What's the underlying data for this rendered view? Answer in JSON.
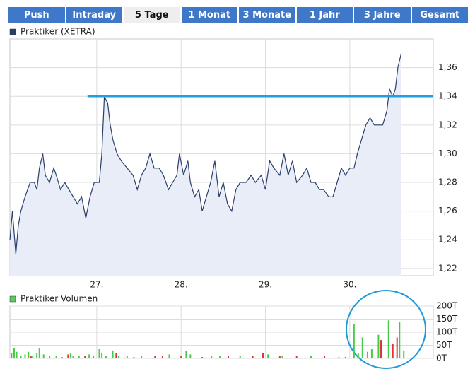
{
  "tabs": {
    "labels": [
      "Push",
      "Intraday",
      "5 Tage",
      "1 Monat",
      "3 Monate",
      "1 Jahr",
      "3 Jahre",
      "Gesamt"
    ],
    "selected_index": 2
  },
  "chart_data": [
    {
      "type": "line",
      "series": [
        {
          "name": "Praktiker (XETRA)",
          "color": "#2b3f6b",
          "fill": "#e9edf8",
          "x": [
            25.97,
            26.0,
            26.04,
            26.07,
            26.1,
            26.15,
            26.21,
            26.26,
            26.29,
            26.32,
            26.36,
            26.39,
            26.44,
            26.49,
            26.52,
            26.57,
            26.62,
            26.67,
            26.72,
            26.77,
            26.82,
            26.87,
            26.92,
            26.97,
            27.03,
            27.06,
            27.09,
            27.13,
            27.16,
            27.19,
            27.24,
            27.29,
            27.36,
            27.43,
            27.48,
            27.53,
            27.58,
            27.63,
            27.68,
            27.74,
            27.79,
            27.85,
            27.9,
            27.95,
            27.98,
            28.03,
            28.08,
            28.11,
            28.16,
            28.21,
            28.25,
            28.3,
            28.35,
            28.4,
            28.45,
            28.5,
            28.55,
            28.6,
            28.65,
            28.7,
            28.77,
            28.83,
            28.88,
            28.95,
            29.0,
            29.05,
            29.1,
            29.17,
            29.22,
            29.27,
            29.32,
            29.37,
            29.44,
            29.49,
            29.54,
            29.59,
            29.64,
            29.69,
            29.75,
            29.8,
            29.85,
            29.9,
            29.95,
            30.0,
            30.05,
            30.09,
            30.14,
            30.19,
            30.24,
            30.29,
            30.34,
            30.39,
            30.44,
            30.47,
            30.51,
            30.54,
            30.57,
            30.61
          ],
          "values": [
            1.24,
            1.26,
            1.23,
            1.25,
            1.26,
            1.27,
            1.28,
            1.28,
            1.275,
            1.29,
            1.3,
            1.285,
            1.28,
            1.29,
            1.285,
            1.275,
            1.28,
            1.275,
            1.27,
            1.265,
            1.27,
            1.255,
            1.27,
            1.28,
            1.28,
            1.3,
            1.34,
            1.335,
            1.32,
            1.31,
            1.3,
            1.295,
            1.29,
            1.285,
            1.275,
            1.285,
            1.29,
            1.3,
            1.29,
            1.29,
            1.285,
            1.275,
            1.28,
            1.285,
            1.3,
            1.285,
            1.295,
            1.28,
            1.27,
            1.275,
            1.26,
            1.27,
            1.28,
            1.295,
            1.27,
            1.28,
            1.265,
            1.26,
            1.275,
            1.28,
            1.28,
            1.285,
            1.28,
            1.285,
            1.275,
            1.295,
            1.29,
            1.285,
            1.3,
            1.285,
            1.295,
            1.28,
            1.285,
            1.29,
            1.28,
            1.28,
            1.275,
            1.275,
            1.27,
            1.27,
            1.28,
            1.29,
            1.285,
            1.29,
            1.29,
            1.3,
            1.31,
            1.32,
            1.325,
            1.32,
            1.32,
            1.32,
            1.33,
            1.345,
            1.34,
            1.345,
            1.36,
            1.37
          ]
        }
      ],
      "xlim": [
        25.97,
        30.99
      ],
      "xticks": [
        {
          "value": 27,
          "label": "27."
        },
        {
          "value": 28,
          "label": "28."
        },
        {
          "value": 29,
          "label": "29."
        },
        {
          "value": 30,
          "label": "30."
        }
      ],
      "ylim": [
        1.215,
        1.38
      ],
      "yticks": [
        {
          "value": 1.22,
          "label": "1,22"
        },
        {
          "value": 1.24,
          "label": "1,24"
        },
        {
          "value": 1.26,
          "label": "1,26"
        },
        {
          "value": 1.28,
          "label": "1,28"
        },
        {
          "value": 1.3,
          "label": "1,30"
        },
        {
          "value": 1.32,
          "label": "1,32"
        },
        {
          "value": 1.34,
          "label": "1,34"
        },
        {
          "value": 1.36,
          "label": "1,36"
        }
      ],
      "grid": true,
      "reference_line": {
        "value": 1.34,
        "x": [
          26.89,
          30.99
        ],
        "color": "#1fa0e0"
      }
    },
    {
      "type": "bar",
      "series": [
        {
          "name": "Praktiker Volumen",
          "color": "#5ccc5c",
          "x": [
            25.99,
            26.02,
            26.05,
            26.1,
            26.15,
            26.19,
            26.22,
            26.24,
            26.29,
            26.32,
            26.37,
            26.44,
            26.52,
            26.59,
            26.66,
            26.69,
            26.72,
            26.79,
            26.86,
            26.91,
            26.96,
            27.03,
            27.06,
            27.11,
            27.19,
            27.23,
            27.26,
            27.36,
            27.44,
            27.53,
            27.69,
            27.78,
            27.86,
            28.0,
            28.06,
            28.11,
            28.25,
            28.36,
            28.46,
            28.56,
            28.7,
            28.85,
            28.97,
            29.03,
            29.17,
            29.2,
            29.37,
            29.54,
            29.7,
            29.87,
            29.95,
            30.05,
            30.1,
            30.15,
            30.21,
            30.26,
            30.34,
            30.37,
            30.46,
            30.51,
            30.56,
            30.59,
            30.64
          ],
          "values": [
            20,
            40,
            25,
            10,
            15,
            25,
            10,
            10,
            20,
            40,
            15,
            10,
            10,
            5,
            15,
            20,
            10,
            8,
            10,
            15,
            10,
            35,
            20,
            10,
            30,
            20,
            10,
            8,
            5,
            10,
            8,
            10,
            15,
            8,
            30,
            15,
            5,
            10,
            10,
            10,
            10,
            8,
            20,
            15,
            8,
            10,
            8,
            8,
            10,
            5,
            5,
            130,
            20,
            80,
            25,
            35,
            90,
            70,
            145,
            55,
            80,
            140,
            30
          ],
          "colors": [
            "#4c4",
            "#4c4",
            "#4c4",
            "#4c4",
            "#4c4",
            "#4c4",
            "#d33",
            "#4c4",
            "#4c4",
            "#4c4",
            "#4c4",
            "#4c4",
            "#4c4",
            "#4c4",
            "#d33",
            "#4c4",
            "#4c4",
            "#4c4",
            "#d33",
            "#4c4",
            "#4c4",
            "#4c4",
            "#4c4",
            "#4c4",
            "#4c4",
            "#d33",
            "#4c4",
            "#4c4",
            "#d33",
            "#4c4",
            "#d33",
            "#d33",
            "#4c4",
            "#d33",
            "#4c4",
            "#4c4",
            "#d33",
            "#4c4",
            "#4c4",
            "#d33",
            "#4c4",
            "#d33",
            "#d33",
            "#4c4",
            "#d33",
            "#4c4",
            "#d33",
            "#4c4",
            "#d33",
            "#4c4",
            "#d33",
            "#4c4",
            "#4c4",
            "#4c4",
            "#4c4",
            "#4c4",
            "#4c4",
            "#d33",
            "#4c4",
            "#d33",
            "#d33",
            "#4c4",
            "#4c4"
          ]
        }
      ],
      "xlim": [
        25.97,
        30.99
      ],
      "ylim": [
        0,
        200
      ],
      "yticks": [
        {
          "value": 0,
          "label": "0T"
        },
        {
          "value": 50,
          "label": "50T"
        },
        {
          "value": 100,
          "label": "100T"
        },
        {
          "value": 150,
          "label": "150T"
        },
        {
          "value": 200,
          "label": "200T"
        }
      ],
      "grid": true
    }
  ]
}
